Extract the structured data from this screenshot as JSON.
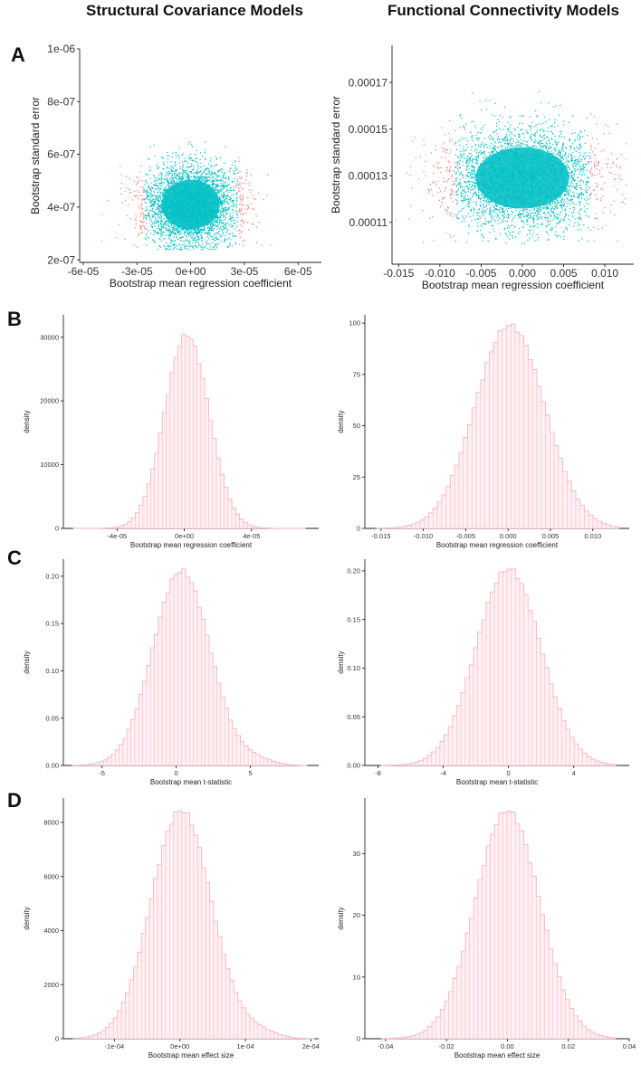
{
  "figure": {
    "column_titles": [
      "Structural Covariance Models",
      "Functional Connectivity Models"
    ],
    "row_labels": [
      "A",
      "B",
      "C",
      "D"
    ]
  },
  "colors": {
    "inner": "#00bfc4",
    "outer": "#f8766d",
    "hist_fill": "#fff0f3",
    "hist_stroke": "#f7b7c5"
  },
  "chart_data": [
    {
      "id": "A1",
      "type": "scatter",
      "title": "",
      "xlabel": "Bootstrap mean regression coefficient",
      "ylabel": "Bootstrap standard error",
      "xlim": [
        -6.2e-05,
        7.3e-05
      ],
      "ylim": [
        1.9e-07,
        1e-06
      ],
      "xticks": [
        -6e-05,
        -3e-05,
        0,
        3e-05,
        6e-05
      ],
      "xticklabels": [
        "-6e-05",
        "-3e-05",
        "0e+00",
        "3e-05",
        "6e-05"
      ],
      "yticks": [
        2e-07,
        4e-07,
        6e-07,
        8e-07,
        1e-06
      ],
      "yticklabels": [
        "2e-07",
        "4e-07",
        "6e-07",
        "8e-07",
        "1e-06"
      ],
      "center": [
        0.0,
        4.1e-07
      ],
      "spread": [
        1.2e-05,
        7.5e-08
      ],
      "threshold": 2.6e-05,
      "ymin_cloud": 2.4e-07,
      "n_points": 4200
    },
    {
      "id": "A2",
      "type": "scatter",
      "title": "",
      "xlabel": "Bootstrap mean regression coefficient",
      "ylabel": "Bootstrap standard error",
      "xlim": [
        -0.0158,
        0.0135
      ],
      "ylim": [
        9.2e-05,
        0.000186
      ],
      "xticks": [
        -0.015,
        -0.01,
        -0.005,
        0,
        0.005,
        0.01
      ],
      "xticklabels": [
        "-0.015",
        "-0.010",
        "-0.005",
        "0.000",
        "0.005",
        "0.010"
      ],
      "yticks": [
        0.00011,
        0.00013,
        0.00015,
        0.00017
      ],
      "yticklabels": [
        "0.00011",
        "0.00013",
        "0.00015",
        "0.00017"
      ],
      "center": [
        0.0,
        0.000129
      ],
      "spread": [
        0.0042,
        1.05e-05
      ],
      "threshold": 0.0082,
      "ymin_cloud": 0.000101,
      "n_points": 4200
    },
    {
      "id": "B1",
      "type": "histogram",
      "title": "",
      "xlabel": "Bootstrap mean regression coefficient",
      "ylabel": "density",
      "xlim": [
        -7.2e-05,
        8e-05
      ],
      "ylim": [
        0,
        33500
      ],
      "xticks": [
        -4e-05,
        0,
        4e-05
      ],
      "xticklabels": [
        "-4e-05",
        "0e+00",
        "4e-05"
      ],
      "yticks": [
        0,
        10000,
        20000,
        30000
      ],
      "yticklabels": [
        "0",
        "10000",
        "20000",
        "30000"
      ],
      "bins_range": [
        -6.6e-05,
        7.2e-05
      ],
      "n_bins": 60,
      "peak": 30400,
      "center": 1.5e-06,
      "sd": 1.32e-05,
      "tail_bump": 0
    },
    {
      "id": "B2",
      "type": "histogram",
      "title": "",
      "xlabel": "Bootstrap mean regression coefficient",
      "ylabel": "density",
      "xlim": [
        -0.0169,
        0.0143
      ],
      "ylim": [
        0,
        104
      ],
      "xticks": [
        -0.015,
        -0.01,
        -0.005,
        0,
        0.005,
        0.01
      ],
      "xticklabels": [
        "-0.015",
        "-0.010",
        "-0.005",
        "0.000",
        "0.005",
        "0.010"
      ],
      "yticks": [
        0,
        25,
        50,
        75,
        100
      ],
      "yticklabels": [
        "0",
        "25",
        "50",
        "75",
        "100"
      ],
      "bins_range": [
        -0.0155,
        0.0131
      ],
      "n_bins": 56,
      "peak": 99,
      "center": 0.0002,
      "sd": 0.0041,
      "tail_bump": 0
    },
    {
      "id": "C1",
      "type": "histogram",
      "title": "",
      "xlabel": "Bootstrap mean t-statistic",
      "ylabel": "density",
      "xlim": [
        -7.6,
        9.6
      ],
      "ylim": [
        0,
        0.218
      ],
      "xticks": [
        -5,
        0,
        5
      ],
      "xticklabels": [
        "-5",
        "0",
        "5"
      ],
      "yticks": [
        0,
        0.05,
        0.1,
        0.15,
        0.2
      ],
      "yticklabels": [
        "0.00",
        "0.05",
        "0.10",
        "0.15",
        "0.20"
      ],
      "bins_range": [
        -7.0,
        8.8
      ],
      "n_bins": 60,
      "peak": 0.206,
      "center": 0.35,
      "sd": 1.92,
      "tail_bump": 0.006
    },
    {
      "id": "C2",
      "type": "histogram",
      "title": "",
      "xlabel": "Bootstrap mean t-statistic",
      "ylabel": "density",
      "xlim": [
        -8.8,
        7.4
      ],
      "ylim": [
        0,
        0.212
      ],
      "xticks": [
        -8,
        -4,
        0,
        4
      ],
      "xticklabels": [
        "-8",
        "-4",
        "0",
        "4"
      ],
      "yticks": [
        0,
        0.05,
        0.1,
        0.15,
        0.2
      ],
      "yticklabels": [
        "0.00",
        "0.05",
        "0.10",
        "0.15",
        "0.20"
      ],
      "bins_range": [
        -7.8,
        6.6
      ],
      "n_bins": 56,
      "peak": 0.202,
      "center": 0.0,
      "sd": 1.98,
      "tail_bump": 0
    },
    {
      "id": "D1",
      "type": "histogram",
      "title": "",
      "xlabel": "Bootstrap mean effect size",
      "ylabel": "density",
      "xlim": [
        -0.000178,
        0.000212
      ],
      "ylim": [
        0,
        8900
      ],
      "xticks": [
        -0.0001,
        0,
        0.0001,
        0.0002
      ],
      "xticklabels": [
        "-1e-04",
        "0e+00",
        "1e-04",
        "2e-04"
      ],
      "yticks": [
        0,
        2000,
        4000,
        6000,
        8000
      ],
      "yticklabels": [
        "0",
        "2000",
        "4000",
        "6000",
        "8000"
      ],
      "bins_range": [
        -0.000163,
        0.000205
      ],
      "n_bins": 60,
      "peak": 8450,
      "center": 2e-06,
      "sd": 4.6e-05,
      "tail_bump": 240
    },
    {
      "id": "D2",
      "type": "histogram",
      "title": "",
      "xlabel": "Bootstrap mean effect size",
      "ylabel": "density",
      "xlim": [
        -0.0468,
        0.04
      ],
      "ylim": [
        0,
        39
      ],
      "xticks": [
        -0.04,
        -0.02,
        0,
        0.02,
        0.04
      ],
      "xticklabels": [
        "-0.04",
        "-0.02",
        "0.00",
        "0.02",
        "0.04"
      ],
      "yticks": [
        0,
        10,
        20,
        30
      ],
      "yticklabels": [
        "0",
        "10",
        "20",
        "30"
      ],
      "bins_range": [
        -0.0412,
        0.0355
      ],
      "n_bins": 56,
      "peak": 37,
      "center": 0.0,
      "sd": 0.0105,
      "tail_bump": 0
    }
  ]
}
